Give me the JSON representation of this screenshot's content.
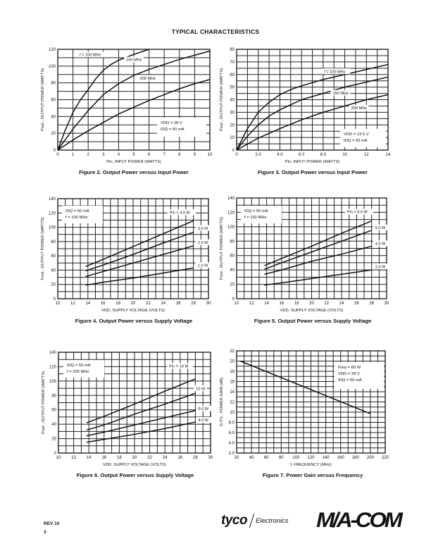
{
  "page_title": "TYPICAL CHARACTERISTICS",
  "footer": {
    "rev": "REV 10",
    "page": "3",
    "tyco_logo": "tyco",
    "tyco_sub": "Electronics",
    "macom_logo": "M/A-COM"
  },
  "chart_data": [
    {
      "type": "line",
      "title": "Figure 2. Output Power versus Input Power",
      "xlabel": "Pin, INPUT POWER (WATTS)",
      "ylabel": "Pout , OUTPUT POWER (WATTS)",
      "xlim": [
        0,
        10
      ],
      "ylim": [
        0,
        120
      ],
      "xticks": [
        "0",
        "1",
        "2",
        "3",
        "4",
        "5",
        "6",
        "7",
        "8",
        "9",
        "10"
      ],
      "yticks": [
        "0",
        "20",
        "40",
        "60",
        "80",
        "100",
        "120"
      ],
      "grid": true,
      "series": [
        {
          "name": "f = 100 MHz",
          "x": [
            0,
            0.5,
            1,
            1.5,
            2,
            2.5,
            3,
            3.5,
            4,
            5,
            6
          ],
          "y": [
            0,
            24,
            45,
            60,
            72,
            85,
            95,
            102,
            107,
            114,
            120
          ]
        },
        {
          "name": "150 MHz",
          "x": [
            0,
            1,
            2,
            3,
            4,
            5,
            6,
            7,
            8,
            9,
            10
          ],
          "y": [
            0,
            25,
            47,
            66,
            79,
            89,
            96,
            102,
            108,
            113,
            118
          ]
        },
        {
          "name": "200 MHz",
          "x": [
            0,
            1,
            2,
            3,
            4,
            5,
            6,
            7,
            8,
            9,
            10
          ],
          "y": [
            0,
            12,
            23,
            33,
            43,
            51,
            59,
            66,
            73,
            79,
            84
          ]
        }
      ],
      "annotation": [
        "VDD = 28  V",
        "IDQ = 50 mA"
      ]
    },
    {
      "type": "line",
      "title": "Figure 3. Output Power versus Input Power",
      "xlabel": "Pin, INPUT POWER (WATTS)",
      "ylabel": "Pout , OUTPUT POWER (WATTS)",
      "xlim": [
        0,
        14
      ],
      "ylim": [
        0,
        80
      ],
      "xticks": [
        "0",
        "2.0",
        "4.0",
        "6.0",
        "8.0",
        "10",
        "12",
        "14"
      ],
      "yticks": [
        "0",
        "10",
        "20",
        "30",
        "40",
        "50",
        "60",
        "70",
        "80"
      ],
      "grid": true,
      "series": [
        {
          "name": "f = 100 MHz",
          "x": [
            0,
            1,
            2,
            3,
            4,
            5,
            6,
            8,
            10,
            12,
            14
          ],
          "y": [
            0,
            17,
            30,
            38,
            44,
            48,
            51,
            56,
            60,
            64,
            68
          ]
        },
        {
          "name": "150 MHz",
          "x": [
            0,
            1,
            2,
            3,
            4,
            5,
            6,
            8,
            10,
            12,
            14
          ],
          "y": [
            0,
            11,
            20,
            27,
            32,
            36,
            40,
            45,
            50,
            54,
            58
          ]
        },
        {
          "name": "200 MHz",
          "x": [
            0,
            2,
            4,
            6,
            8,
            10,
            12,
            14
          ],
          "y": [
            0,
            9.5,
            17,
            24,
            30,
            35,
            40,
            44
          ]
        }
      ],
      "annotation": [
        "VDD = 13.5  V",
        "IDQ = 50 mA"
      ]
    },
    {
      "type": "line",
      "title": "Figure 4. Output Power versus Supply Voltage",
      "xlabel": "VDD, SUPPLY VOLTAGE (VOLTS)",
      "ylabel": "Pout , OUTPUT POWER (WATTS)",
      "xlim": [
        10,
        30
      ],
      "ylim": [
        0,
        140
      ],
      "xticks": [
        "10",
        "12",
        "14",
        "16",
        "18",
        "20",
        "22",
        "24",
        "26",
        "28",
        "30"
      ],
      "yticks": [
        "0",
        "20",
        "40",
        "60",
        "80",
        "100",
        "120",
        "140"
      ],
      "grid": true,
      "series": [
        {
          "name": "Pin = 4.0 W",
          "x": [
            13.7,
            16,
            20,
            24,
            28
          ],
          "y": [
            45,
            55,
            73,
            91,
            109
          ]
        },
        {
          "name": "3.0 W",
          "x": [
            13.7,
            16,
            20,
            24,
            28
          ],
          "y": [
            39,
            47,
            62,
            78,
            93
          ]
        },
        {
          "name": "2.0 W",
          "x": [
            13.7,
            16,
            20,
            24,
            28
          ],
          "y": [
            31,
            38,
            50,
            62,
            74
          ]
        },
        {
          "name": "1.0 W",
          "x": [
            13.7,
            16,
            20,
            24,
            28
          ],
          "y": [
            19,
            23,
            29,
            36,
            43
          ]
        }
      ],
      "annotation": [
        "IDQ = 50 mA",
        "f = 100 MHz"
      ]
    },
    {
      "type": "line",
      "title": "Figure 5. Output Power versus Supply Voltage",
      "xlabel": "VDD, SUPPLY VOLTAGE (VOLTS)",
      "ylabel": "Pout , OUTPUT POWER (WATTS)",
      "xlim": [
        10,
        30
      ],
      "ylim": [
        0,
        140
      ],
      "xticks": [
        "10",
        "12",
        "14",
        "16",
        "18",
        "20",
        "22",
        "24",
        "26",
        "28",
        "30"
      ],
      "yticks": [
        "0",
        "20",
        "40",
        "60",
        "80",
        "100",
        "120",
        "140"
      ],
      "grid": true,
      "series": [
        {
          "name": "Pin = 8.0 W",
          "x": [
            13.7,
            16,
            20,
            24,
            28
          ],
          "y": [
            46,
            56,
            73,
            91,
            108
          ]
        },
        {
          "name": "6.0 W",
          "x": [
            13.7,
            16,
            20,
            24,
            28
          ],
          "y": [
            41,
            50,
            65,
            80,
            95
          ]
        },
        {
          "name": "4.0 W",
          "x": [
            13.7,
            16,
            20,
            24,
            28
          ],
          "y": [
            34,
            40,
            52,
            62,
            73
          ]
        },
        {
          "name": "2.0 W",
          "x": [
            13.7,
            16,
            20,
            24,
            28
          ],
          "y": [
            19,
            22,
            28,
            34,
            40
          ]
        }
      ],
      "annotation": [
        "IDQ = 50 mA",
        "f = 150 MHz"
      ]
    },
    {
      "type": "line",
      "title": "Figure 6. Output Power versus Supply Voltage",
      "xlabel": "VDD, SUPPLY VOLTAGE (VOLTS)",
      "ylabel": "Pout , OUTPUT POWER (WATTS)",
      "xlim": [
        10,
        30
      ],
      "ylim": [
        0,
        140
      ],
      "xticks": [
        "10",
        "12",
        "14",
        "16",
        "18",
        "20",
        "22",
        "24",
        "26",
        "28",
        "30"
      ],
      "yticks": [
        "0",
        "20",
        "40",
        "60",
        "80",
        "100",
        "120",
        "140"
      ],
      "grid": true,
      "series": [
        {
          "name": "Pin = 14 W",
          "x": [
            13.7,
            16,
            20,
            24,
            28
          ],
          "y": [
            42,
            51,
            68,
            86,
            103
          ]
        },
        {
          "name": "10 W",
          "x": [
            13.7,
            16,
            20,
            24,
            28
          ],
          "y": [
            32,
            39,
            54,
            68,
            83
          ]
        },
        {
          "name": "6.0 W",
          "x": [
            13.7,
            16,
            20,
            24,
            28
          ],
          "y": [
            24,
            29,
            39,
            49,
            59
          ]
        },
        {
          "name": "4.0 W",
          "x": [
            13.7,
            16,
            20,
            24,
            28
          ],
          "y": [
            15,
            19,
            26,
            34,
            43
          ]
        }
      ],
      "annotation": [
        "IDQ = 50 mA",
        "f = 200 MHz"
      ]
    },
    {
      "type": "line",
      "title": "Figure 7. Power Gain versus Frequency",
      "xlabel": "f, FREQUENCY (MHz)",
      "ylabel": "G PS , POWER GAIN (dB)",
      "xlim": [
        20,
        220
      ],
      "ylim": [
        2,
        22
      ],
      "xticks": [
        "20",
        "40",
        "60",
        "80",
        "100",
        "120",
        "140",
        "160",
        "180",
        "200",
        "220"
      ],
      "yticks": [
        "2.0",
        "4.0",
        "6.0",
        "8.0",
        "10",
        "12",
        "14",
        "16",
        "18",
        "20",
        "22"
      ],
      "grid": true,
      "series": [
        {
          "name": "GPS",
          "x": [
            25,
            200
          ],
          "y": [
            20,
            9.7
          ]
        }
      ],
      "annotation": [
        "Pout = 80 W",
        "VDD = 28 V",
        "IDQ = 50 mA"
      ]
    }
  ]
}
